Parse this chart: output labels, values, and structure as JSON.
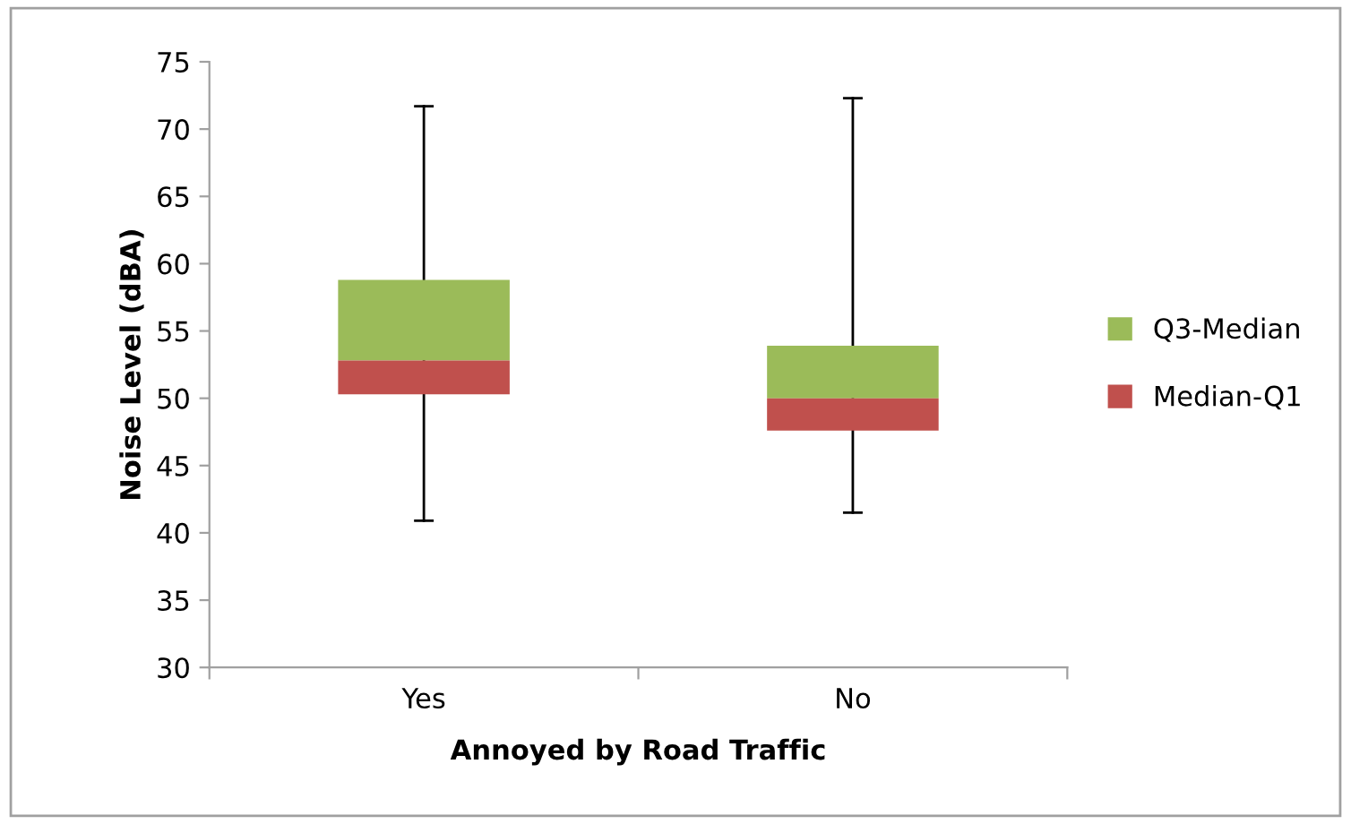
{
  "chart_data": {
    "type": "bar",
    "xlabel": "Annoyed by Road Traffic",
    "ylabel": "Noise Level (dBA)",
    "categories": [
      "Yes",
      "No"
    ],
    "series": [
      {
        "name": "Q3-Median",
        "color": "#9bbb59",
        "base": [
          52.8,
          50.0
        ],
        "values": [
          6.0,
          3.9
        ],
        "errors": [
          [
            40.9,
            71.7
          ],
          [
            41.5,
            72.3
          ]
        ]
      },
      {
        "name": "Median-Q1",
        "color": "#c0504d",
        "base": [
          50.3,
          47.6
        ],
        "values": [
          2.5,
          2.4
        ]
      }
    ],
    "ylim": [
      30,
      75
    ],
    "yticks": [
      30,
      35,
      40,
      45,
      50,
      55,
      60,
      65,
      70,
      75
    ],
    "legend": "right"
  }
}
